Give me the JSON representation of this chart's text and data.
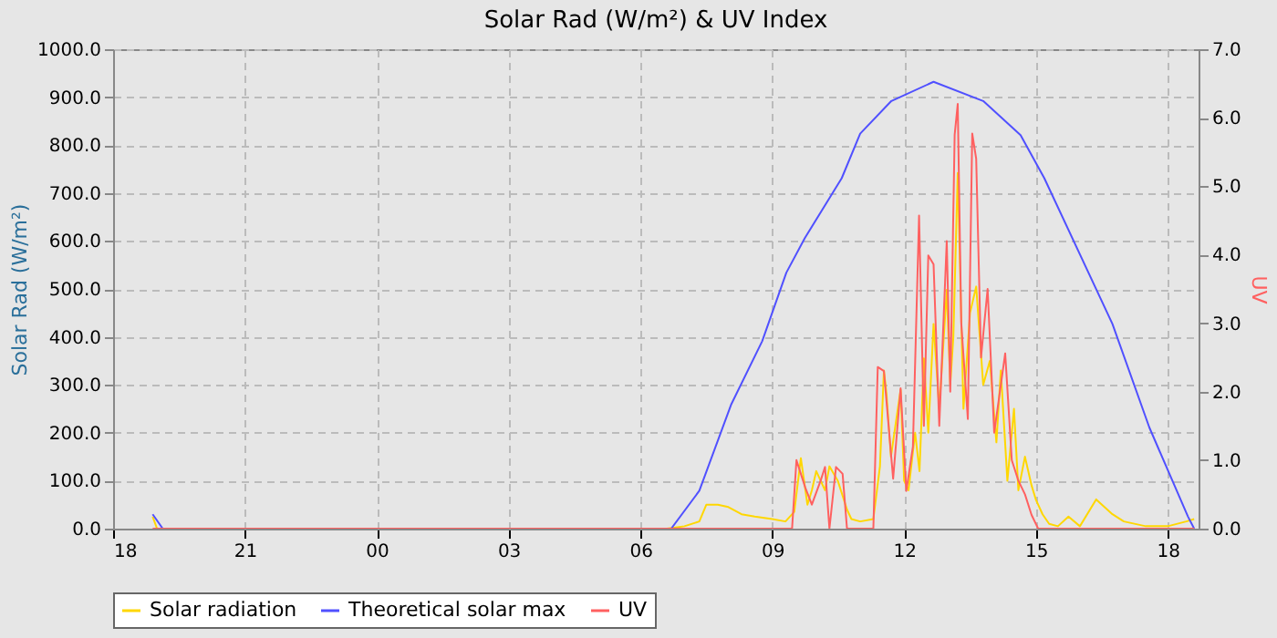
{
  "chart_data": {
    "type": "line",
    "title": "Solar Rad (W/m²) &  UV Index",
    "ylabel": "Solar Rad (W/m²)",
    "y2label": "UV",
    "xlim": [
      18,
      42.7
    ],
    "xticks": [
      {
        "value": 18,
        "label": "18"
      },
      {
        "value": 21,
        "label": "21"
      },
      {
        "value": 24,
        "label": "00"
      },
      {
        "value": 27,
        "label": "03"
      },
      {
        "value": 30,
        "label": "06"
      },
      {
        "value": 33,
        "label": "09"
      },
      {
        "value": 36,
        "label": "12"
      },
      {
        "value": 39,
        "label": "15"
      },
      {
        "value": 42,
        "label": "18"
      }
    ],
    "ylim": [
      0,
      1000
    ],
    "yticks": [
      {
        "value": 0,
        "label": "0.0"
      },
      {
        "value": 100,
        "label": "100.0"
      },
      {
        "value": 200,
        "label": "200.0"
      },
      {
        "value": 300,
        "label": "300.0"
      },
      {
        "value": 400,
        "label": "400.0"
      },
      {
        "value": 500,
        "label": "500.0"
      },
      {
        "value": 600,
        "label": "600.0"
      },
      {
        "value": 700,
        "label": "700.0"
      },
      {
        "value": 800,
        "label": "800.0"
      },
      {
        "value": 900,
        "label": "900.0"
      },
      {
        "value": 1000,
        "label": "1000.0"
      }
    ],
    "y2lim": [
      0,
      7
    ],
    "y2ticks": [
      {
        "value": 0,
        "label": "0.0"
      },
      {
        "value": 1,
        "label": "1.0"
      },
      {
        "value": 2,
        "label": "2.0"
      },
      {
        "value": 3,
        "label": "3.0"
      },
      {
        "value": 4,
        "label": "4.0"
      },
      {
        "value": 5,
        "label": "5.0"
      },
      {
        "value": 6,
        "label": "6.0"
      },
      {
        "value": 7,
        "label": "7.0"
      }
    ],
    "grid": true,
    "legend": "bottom",
    "marker": "none",
    "line_style": "solid",
    "series": [
      {
        "name": "Solar radiation",
        "color": "#ffd700",
        "x": [
          18.9,
          19.0,
          30.6,
          31.0,
          31.34,
          31.5,
          31.76,
          32.0,
          32.3,
          32.6,
          33.0,
          33.3,
          33.5,
          33.65,
          33.8,
          33.9,
          34.0,
          34.2,
          34.3,
          34.49,
          34.7,
          34.8,
          35.0,
          35.3,
          35.45,
          35.54,
          35.6,
          35.7,
          35.92,
          36.0,
          36.1,
          36.25,
          36.35,
          36.45,
          36.55,
          36.67,
          36.8,
          36.97,
          37.05,
          37.12,
          37.22,
          37.35,
          37.5,
          37.64,
          37.8,
          37.95,
          38.1,
          38.2,
          38.35,
          38.5,
          38.6,
          38.75,
          38.9,
          39.0,
          39.15,
          39.3,
          39.5,
          39.74,
          40.0,
          40.37,
          40.74,
          41.0,
          41.5,
          42.0,
          42.42,
          42.6
        ],
        "values": [
          25,
          0,
          0,
          5,
          15,
          50,
          50,
          45,
          30,
          25,
          20,
          15,
          35,
          147,
          50,
          80,
          120,
          80,
          130,
          100,
          40,
          20,
          15,
          20,
          130,
          330,
          280,
          150,
          290,
          100,
          80,
          200,
          120,
          355,
          200,
          427,
          250,
          498,
          300,
          400,
          742,
          250,
          450,
          505,
          300,
          350,
          180,
          330,
          100,
          250,
          80,
          150,
          90,
          60,
          30,
          10,
          5,
          25,
          5,
          61,
          30,
          15,
          5,
          5,
          15,
          20
        ]
      },
      {
        "name": "Theoretical solar max",
        "color": "#5050ff",
        "x": [
          18.9,
          19.13,
          30.7,
          31.34,
          32.06,
          32.77,
          33.32,
          33.74,
          34.58,
          35.0,
          35.71,
          36.67,
          37.8,
          38.65,
          39.19,
          40.74,
          41.58,
          42.46,
          42.6
        ],
        "values": [
          30,
          0,
          0,
          79,
          258,
          391,
          534,
          606,
          731,
          824,
          892,
          932,
          892,
          821,
          731,
          427,
          211,
          25,
          0
        ]
      },
      {
        "name": "UV",
        "color": "#ff6060",
        "axis": "y2",
        "x": [
          18.9,
          33.45,
          33.55,
          33.75,
          33.9,
          34.1,
          34.2,
          34.3,
          34.45,
          34.6,
          34.7,
          35.3,
          35.4,
          35.54,
          35.75,
          35.92,
          36.05,
          36.2,
          36.34,
          36.45,
          36.55,
          36.67,
          36.8,
          36.97,
          37.05,
          37.15,
          37.22,
          37.3,
          37.45,
          37.55,
          37.64,
          37.75,
          37.9,
          38.05,
          38.3,
          38.45,
          38.6,
          38.75,
          38.9,
          39.05,
          42.6
        ],
        "values": [
          0,
          0,
          1.0,
          0.6,
          0.35,
          0.7,
          0.9,
          0,
          0.9,
          0.8,
          0,
          0,
          2.36,
          2.3,
          0.73,
          2.05,
          0.55,
          1.2,
          4.57,
          1.5,
          3.99,
          3.86,
          1.5,
          4.2,
          2.0,
          5.75,
          6.2,
          3.0,
          1.6,
          5.77,
          5.4,
          2.5,
          3.5,
          1.4,
          2.56,
          1.0,
          0.7,
          0.5,
          0.2,
          0,
          0
        ]
      }
    ]
  }
}
